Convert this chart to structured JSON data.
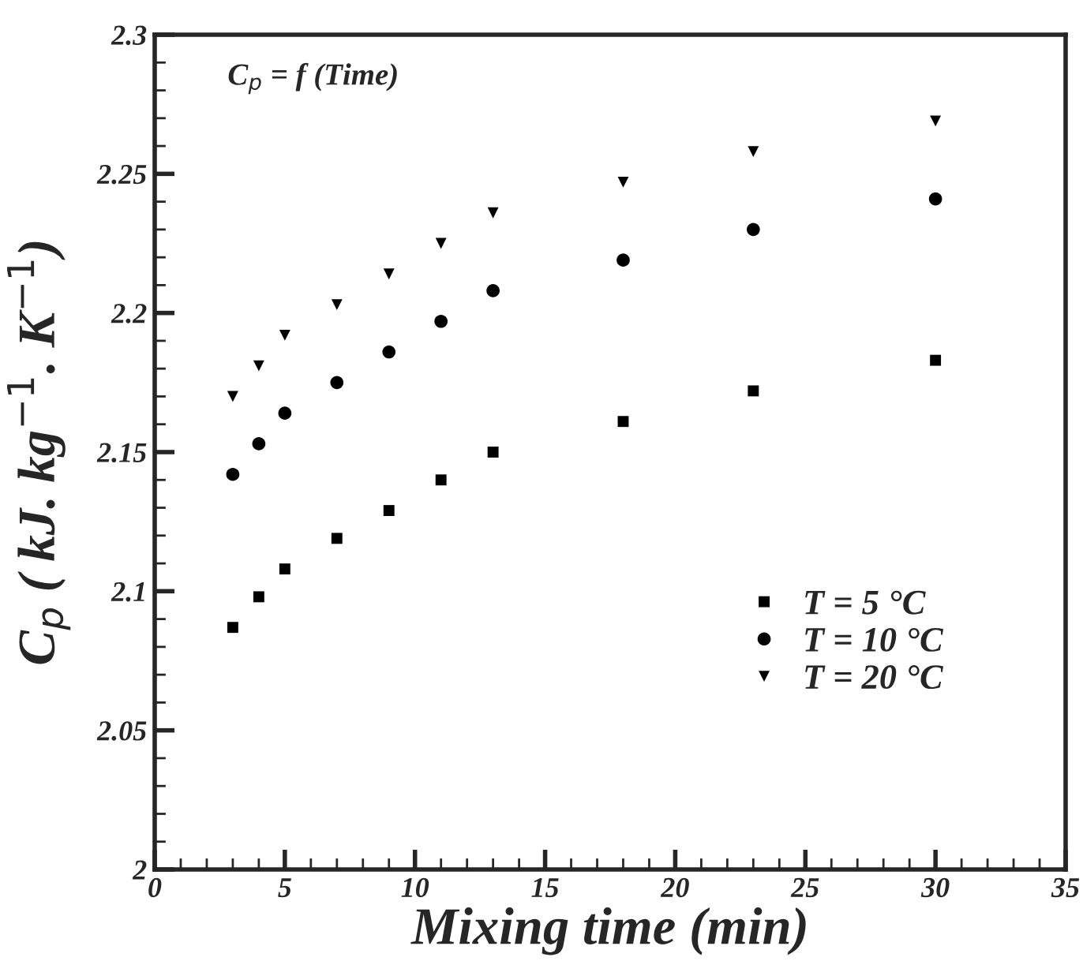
{
  "chart_data": {
    "type": "scatter",
    "xlabel": "Mixing time (min)",
    "ylabel": "C$_{p}$ ( kJ. kg$^{−1}$. K$^{−1}$)",
    "annotations": [
      "C$_{p}$ = f (Time)"
    ],
    "x": [
      3,
      4,
      5,
      7,
      9,
      11,
      13,
      18,
      23,
      30
    ],
    "series": [
      {
        "name": "T = 5 °C",
        "color": "#000000",
        "marker": "square",
        "values": [
          2.087,
          2.098,
          2.108,
          2.119,
          2.129,
          2.14,
          2.15,
          2.161,
          2.172,
          2.183
        ]
      },
      {
        "name": "T = 10 °C",
        "color": "#000000",
        "marker": "circle",
        "values": [
          2.142,
          2.153,
          2.164,
          2.175,
          2.186,
          2.197,
          2.208,
          2.219,
          2.23,
          2.241
        ]
      },
      {
        "name": "T = 20 °C",
        "color": "#000000",
        "marker": "triangle",
        "values": [
          2.17,
          2.181,
          2.192,
          2.203,
          2.214,
          2.225,
          2.236,
          2.247,
          2.258,
          2.269
        ]
      }
    ],
    "xlim": [
      0,
      35
    ],
    "xticks": [
      0,
      5,
      10,
      15,
      20,
      25,
      30,
      35
    ],
    "ylim": [
      2,
      2.3
    ],
    "yticks": [
      2,
      2.05,
      2.1,
      2.15,
      2.2,
      2.25,
      2.3
    ],
    "grid": false,
    "legend": "bottom right"
  }
}
